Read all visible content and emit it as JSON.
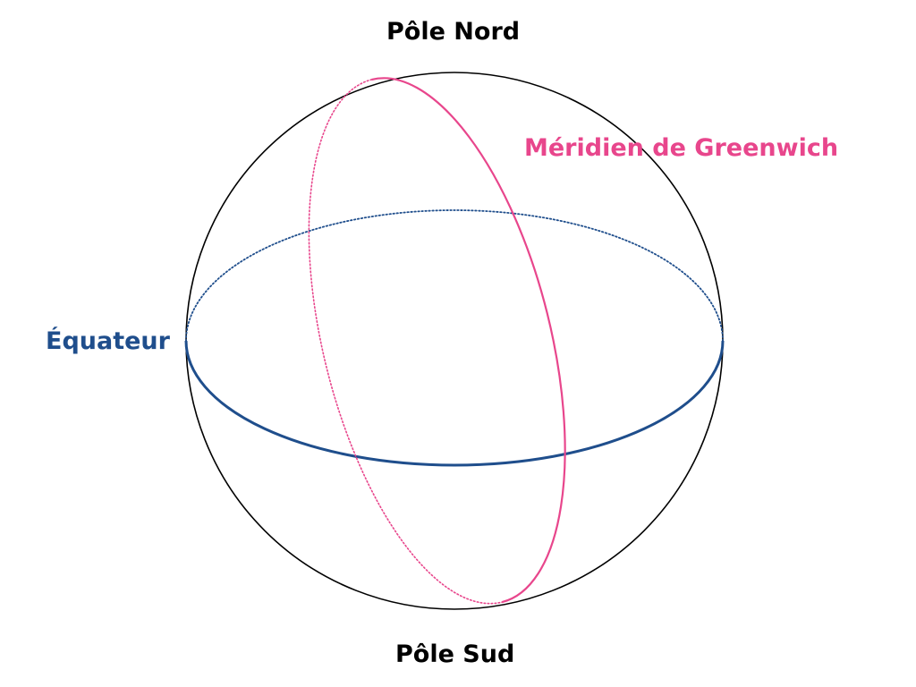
{
  "diagram": {
    "labels": {
      "north_pole": "Pôle Nord",
      "south_pole": "Pôle Sud",
      "equator": "Équateur",
      "meridian": "Méridien de Greenwich"
    },
    "colors": {
      "sphere": "#000000",
      "equator": "#1f4e8c",
      "meridian": "#e8468c",
      "label_default": "#000000"
    }
  }
}
